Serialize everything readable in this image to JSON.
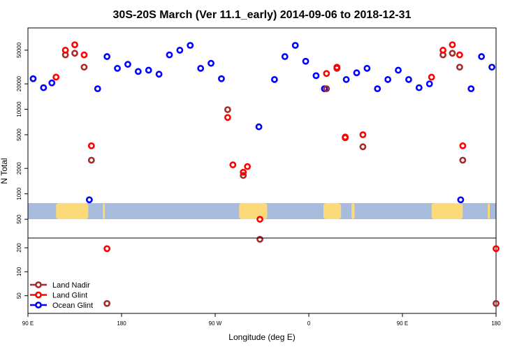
{
  "chart_data": {
    "type": "scatter",
    "title": "30S-20S March (Ver 11.1_early)   2014-09-06 to 2018-12-31",
    "xlabel": "Longitude (deg E)",
    "ylabel": "N Total",
    "x_axis": {
      "range": [
        90,
        540
      ],
      "ticks": [
        {
          "value": 90,
          "label": "90 E"
        },
        {
          "value": 180,
          "label": "180"
        },
        {
          "value": 270,
          "label": "90 W"
        },
        {
          "value": 360,
          "label": "0"
        },
        {
          "value": 450,
          "label": "90 E"
        },
        {
          "value": 540,
          "label": "180"
        }
      ]
    },
    "upper_panel": {
      "scale": "log",
      "range": [
        300,
        90000
      ],
      "ticks": [
        500,
        1000,
        2000,
        5000,
        10000,
        20000,
        50000
      ]
    },
    "lower_panel": {
      "scale": "log",
      "range": [
        30,
        260
      ],
      "ticks": [
        50,
        100,
        200
      ]
    },
    "legend": {
      "position": "bottom-left",
      "entries": [
        {
          "label": "Land Nadir",
          "color": "#a52a2a"
        },
        {
          "label": "Land Glint",
          "color": "#ff0000"
        },
        {
          "label": "Ocean Glint",
          "color": "#0000ff"
        }
      ]
    },
    "series": [
      {
        "name": "Ocean Glint",
        "color": "#0000ff",
        "panel": "upper",
        "points": [
          [
            95,
            23000
          ],
          [
            105,
            18000
          ],
          [
            113,
            20500
          ],
          [
            149,
            850
          ],
          [
            157,
            17500
          ],
          [
            166,
            42000
          ],
          [
            176,
            30500
          ],
          [
            186,
            34000
          ],
          [
            196,
            28000
          ],
          [
            206,
            29000
          ],
          [
            216,
            26000
          ],
          [
            226,
            44000
          ],
          [
            236,
            50000
          ],
          [
            246,
            57000
          ],
          [
            256,
            30500
          ],
          [
            266,
            35000
          ],
          [
            276,
            23000
          ],
          [
            312,
            6200
          ],
          [
            327,
            22500
          ],
          [
            337,
            42000
          ],
          [
            347,
            57000
          ],
          [
            357,
            37000
          ],
          [
            367,
            25000
          ],
          [
            375,
            17500
          ],
          [
            396,
            22500
          ],
          [
            406,
            27000
          ],
          [
            416,
            30500
          ],
          [
            426,
            17500
          ],
          [
            436,
            22500
          ],
          [
            446,
            29000
          ],
          [
            456,
            22500
          ],
          [
            466,
            18000
          ],
          [
            476,
            20000
          ],
          [
            506,
            850
          ],
          [
            516,
            17500
          ],
          [
            526,
            42000
          ],
          [
            536,
            31500
          ]
        ]
      },
      {
        "name": "Land Glint",
        "color": "#ff0000",
        "panel": "upper",
        "points": [
          [
            117,
            24000
          ],
          [
            126,
            50000
          ],
          [
            135,
            58000
          ],
          [
            144,
            44000
          ],
          [
            151,
            3700
          ],
          [
            282,
            8000
          ],
          [
            287,
            2200
          ],
          [
            297,
            1800
          ],
          [
            301,
            2100
          ],
          [
            313,
            500
          ],
          [
            377,
            26500
          ],
          [
            387,
            31500
          ],
          [
            395,
            4700
          ],
          [
            412,
            5000
          ],
          [
            478,
            24000
          ],
          [
            489,
            50000
          ],
          [
            498,
            58000
          ],
          [
            505,
            44000
          ],
          [
            508,
            3700
          ]
        ]
      },
      {
        "name": "Land Nadir",
        "color": "#a52a2a",
        "panel": "upper",
        "points": [
          [
            126,
            44000
          ],
          [
            135,
            46000
          ],
          [
            144,
            31500
          ],
          [
            151,
            2500
          ],
          [
            282,
            9900
          ],
          [
            297,
            1650
          ],
          [
            313,
            290
          ],
          [
            377,
            17500
          ],
          [
            387,
            30500
          ],
          [
            395,
            4600
          ],
          [
            412,
            3600
          ],
          [
            489,
            44000
          ],
          [
            498,
            46000
          ],
          [
            505,
            31500
          ],
          [
            508,
            2500
          ]
        ]
      },
      {
        "name": "Land Glint",
        "color": "#ff0000",
        "panel": "lower",
        "points": [
          [
            166,
            195
          ],
          [
            540,
            195
          ]
        ]
      },
      {
        "name": "Land Nadir",
        "color": "#a52a2a",
        "panel": "lower",
        "points": [
          [
            166,
            40
          ],
          [
            540,
            40
          ]
        ]
      }
    ],
    "map_strip": {
      "ocean_color": "#a7bcdc",
      "land_color": "#fcd979",
      "land_spans": [
        [
          117,
          148
        ],
        [
          162,
          164
        ],
        [
          293,
          320
        ],
        [
          374,
          391
        ],
        [
          401,
          404
        ],
        [
          478,
          508
        ],
        [
          532,
          534
        ]
      ]
    }
  }
}
